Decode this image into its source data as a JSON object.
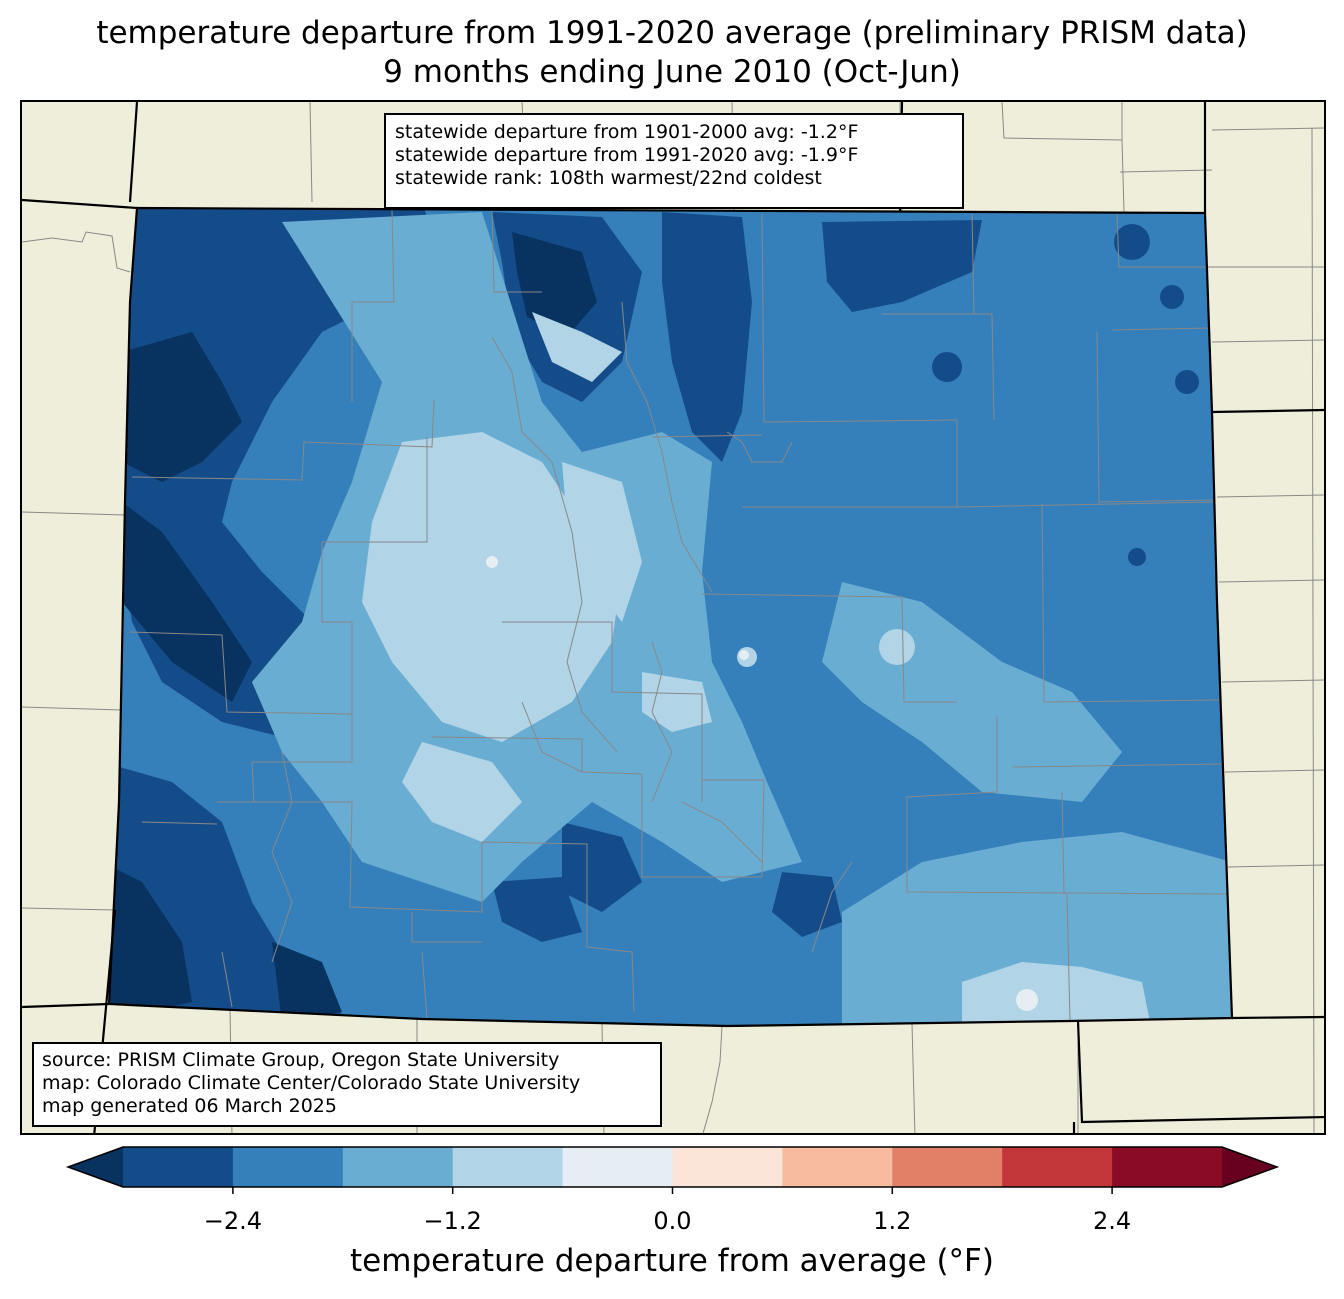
{
  "title": {
    "line1": "temperature departure from 1991-2020 average (preliminary PRISM data)",
    "line2": "9 months ending June 2010 (Oct-Jun)"
  },
  "stats_box": {
    "line1": "statewide departure from 1901-2000 avg: -1.2°F",
    "line2": "statewide departure from 1991-2020 avg: -1.9°F",
    "line3": "statewide rank: 108th warmest/22nd coldest"
  },
  "source_box": {
    "line1": "source: PRISM Climate Group, Oregon State University",
    "line2": "map: Colorado Climate Center/Colorado State University",
    "line3": "map generated 06 March 2025"
  },
  "colors": {
    "land_background": "#efeedb",
    "state_border": "#000000",
    "county_lines": "#888888"
  },
  "colorbar": {
    "label": "temperature departure from average (°F)",
    "bins": [
      {
        "from": -3.0,
        "to": -2.4,
        "color": "#144c8a"
      },
      {
        "from": -2.4,
        "to": -1.8,
        "color": "#3580bb"
      },
      {
        "from": -1.8,
        "to": -1.2,
        "color": "#6aadd3"
      },
      {
        "from": -1.2,
        "to": -0.6,
        "color": "#b1d5e7"
      },
      {
        "from": -0.6,
        "to": 0.0,
        "color": "#e5eef3"
      },
      {
        "from": 0.0,
        "to": 0.6,
        "color": "#fbe4d8"
      },
      {
        "from": 0.6,
        "to": 1.2,
        "color": "#f8bba0"
      },
      {
        "from": 1.2,
        "to": 1.8,
        "color": "#e27f67"
      },
      {
        "from": 1.8,
        "to": 2.4,
        "color": "#c23639"
      },
      {
        "from": 2.4,
        "to": 3.0,
        "color": "#8a0b25"
      }
    ],
    "under_color": "#08325f",
    "over_color": "#670020",
    "range": [
      -3.0,
      3.0
    ],
    "ticks": [
      {
        "value": -2.4,
        "label": "−2.4"
      },
      {
        "value": -1.2,
        "label": "−1.2"
      },
      {
        "value": 0.0,
        "label": "0.0"
      },
      {
        "value": 1.2,
        "label": "1.2"
      },
      {
        "value": 2.4,
        "label": "2.4"
      }
    ]
  }
}
